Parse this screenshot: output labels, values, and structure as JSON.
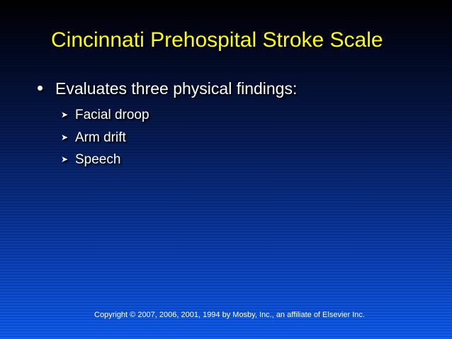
{
  "slide": {
    "title": "Cincinnati Prehospital Stroke Scale",
    "main_bullet": "Evaluates three physical findings:",
    "sub_bullets": [
      {
        "label": "Facial droop"
      },
      {
        "label": "Arm drift"
      },
      {
        "label": "Speech"
      }
    ],
    "copyright": "Copyright © 2007, 2006, 2001, 1994 by Mosby, Inc., an affiliate of Elsevier Inc."
  },
  "icons": {
    "main_bullet": "filled-circle-bullet",
    "sub_bullet": "arrowhead-bullet"
  },
  "colors": {
    "title": "#ffff00",
    "text": "#ffffff",
    "background_top": "#000000",
    "background_bottom": "#0f5cf0"
  }
}
